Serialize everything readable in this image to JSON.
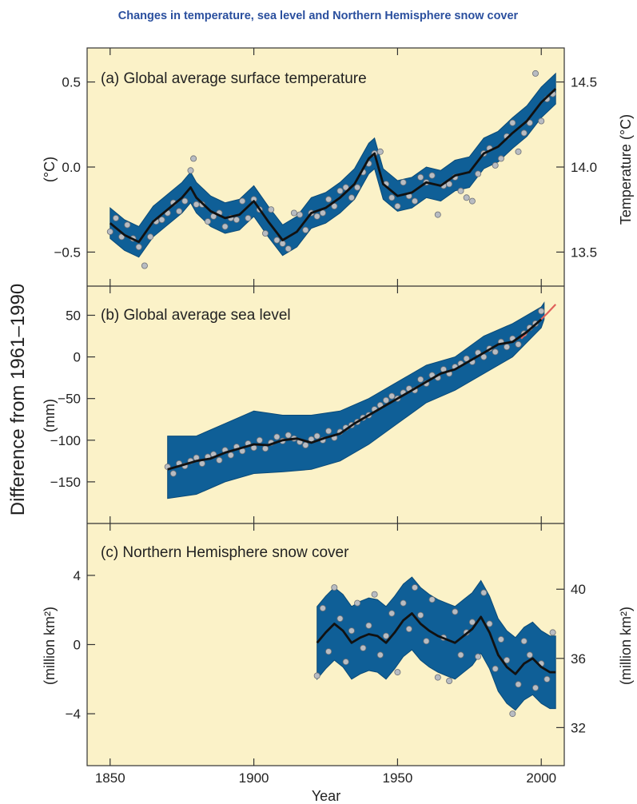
{
  "figure_title": "Changes in temperature, sea level and Northern Hemisphere snow cover",
  "shared_ylabel": "Difference from 1961–1990",
  "shared_xlabel": "Year",
  "colors": {
    "background": "#fbf2c8",
    "band": "#0f5f97",
    "smooth": "#111111",
    "points": "#b8bcc2",
    "satellite": "#e0605a",
    "title": "#2a4f9e"
  },
  "chart_data": [
    {
      "type": "line",
      "title": "(a) Global average surface temperature",
      "ylabel": "(°C)",
      "ylabel_right": "Temperature (°C)",
      "xlim": [
        1842,
        2008
      ],
      "ylim": [
        -0.7,
        0.7
      ],
      "x_ticks": [
        "1850",
        "1900",
        "1950",
        "2000"
      ],
      "y_ticks": [
        {
          "value": 0.5,
          "label": "0.5"
        },
        {
          "value": 0.0,
          "label": "0.0"
        },
        {
          "value": -0.5,
          "label": "−0.5"
        }
      ],
      "y_ticks_right": [
        {
          "value": 0.5,
          "label": "14.5"
        },
        {
          "value": 0.0,
          "label": "14.0"
        },
        {
          "value": -0.5,
          "label": "13.5"
        }
      ],
      "band_halfwidth": 0.09,
      "smoothed": {
        "x": [
          1850,
          1855,
          1860,
          1865,
          1870,
          1875,
          1878,
          1880,
          1885,
          1890,
          1895,
          1900,
          1905,
          1910,
          1915,
          1920,
          1925,
          1930,
          1935,
          1940,
          1942,
          1945,
          1950,
          1955,
          1960,
          1965,
          1970,
          1975,
          1980,
          1985,
          1990,
          1995,
          2000,
          2005
        ],
        "y": [
          -0.33,
          -0.4,
          -0.44,
          -0.32,
          -0.25,
          -0.18,
          -0.12,
          -0.18,
          -0.26,
          -0.3,
          -0.28,
          -0.2,
          -0.32,
          -0.43,
          -0.38,
          -0.27,
          -0.24,
          -0.18,
          -0.1,
          0.05,
          0.08,
          -0.1,
          -0.17,
          -0.15,
          -0.09,
          -0.11,
          -0.05,
          -0.03,
          0.08,
          0.12,
          0.2,
          0.27,
          0.38,
          0.46
        ]
      },
      "annual": {
        "x": [
          1850,
          1852,
          1854,
          1856,
          1858,
          1860,
          1862,
          1864,
          1866,
          1868,
          1870,
          1872,
          1874,
          1876,
          1878,
          1879,
          1880,
          1882,
          1884,
          1886,
          1888,
          1890,
          1892,
          1894,
          1896,
          1898,
          1900,
          1902,
          1904,
          1906,
          1908,
          1910,
          1912,
          1914,
          1916,
          1918,
          1920,
          1922,
          1924,
          1926,
          1928,
          1930,
          1932,
          1934,
          1936,
          1938,
          1940,
          1942,
          1944,
          1946,
          1948,
          1950,
          1952,
          1954,
          1956,
          1958,
          1960,
          1962,
          1964,
          1966,
          1968,
          1970,
          1972,
          1974,
          1976,
          1978,
          1980,
          1982,
          1984,
          1986,
          1988,
          1990,
          1992,
          1994,
          1996,
          1998,
          2000,
          2002,
          2004
        ],
        "y": [
          -0.38,
          -0.3,
          -0.41,
          -0.34,
          -0.42,
          -0.47,
          -0.58,
          -0.41,
          -0.32,
          -0.31,
          -0.27,
          -0.21,
          -0.26,
          -0.2,
          -0.02,
          0.05,
          -0.22,
          -0.22,
          -0.32,
          -0.29,
          -0.27,
          -0.35,
          -0.3,
          -0.31,
          -0.2,
          -0.3,
          -0.19,
          -0.25,
          -0.39,
          -0.25,
          -0.43,
          -0.45,
          -0.48,
          -0.27,
          -0.28,
          -0.37,
          -0.27,
          -0.29,
          -0.27,
          -0.19,
          -0.23,
          -0.14,
          -0.12,
          -0.18,
          -0.12,
          -0.03,
          0.02,
          0.08,
          0.09,
          -0.1,
          -0.18,
          -0.23,
          -0.09,
          -0.17,
          -0.2,
          -0.06,
          -0.09,
          -0.05,
          -0.28,
          -0.11,
          -0.1,
          -0.06,
          -0.14,
          -0.18,
          -0.2,
          -0.04,
          0.08,
          0.11,
          0.01,
          0.05,
          0.18,
          0.26,
          0.09,
          0.2,
          0.26,
          0.55,
          0.27,
          0.4,
          0.43
        ]
      }
    },
    {
      "type": "line",
      "title": "(b) Global average sea level",
      "ylabel": "(mm)",
      "xlim": [
        1842,
        2008
      ],
      "ylim": [
        -200,
        85
      ],
      "x_ticks": [
        "1850",
        "1900",
        "1950",
        "2000"
      ],
      "y_ticks": [
        {
          "value": 50,
          "label": "50"
        },
        {
          "value": 0,
          "label": "0"
        },
        {
          "value": -50,
          "label": "−50"
        },
        {
          "value": -100,
          "label": "−100"
        },
        {
          "value": -150,
          "label": "−150"
        }
      ],
      "band": {
        "x": [
          1870,
          1880,
          1890,
          1900,
          1910,
          1920,
          1930,
          1940,
          1950,
          1960,
          1970,
          1980,
          1990,
          2000,
          2001
        ],
        "lower": [
          -170,
          -165,
          -150,
          -140,
          -138,
          -135,
          -125,
          -105,
          -80,
          -55,
          -40,
          -20,
          0,
          35,
          45
        ],
        "upper": [
          -95,
          -95,
          -80,
          -65,
          -70,
          -70,
          -65,
          -50,
          -30,
          -10,
          0,
          25,
          40,
          60,
          65
        ]
      },
      "smoothed": {
        "x": [
          1870,
          1875,
          1880,
          1885,
          1890,
          1895,
          1900,
          1905,
          1910,
          1915,
          1920,
          1925,
          1930,
          1935,
          1940,
          1945,
          1950,
          1955,
          1960,
          1965,
          1970,
          1975,
          1980,
          1985,
          1990,
          1995,
          2000
        ],
        "y": [
          -135,
          -130,
          -125,
          -122,
          -115,
          -110,
          -105,
          -106,
          -100,
          -98,
          -103,
          -97,
          -92,
          -80,
          -70,
          -60,
          -50,
          -40,
          -30,
          -20,
          -15,
          -5,
          5,
          15,
          18,
          30,
          45
        ]
      },
      "annual": {
        "x": [
          1870,
          1872,
          1874,
          1876,
          1878,
          1880,
          1882,
          1884,
          1886,
          1888,
          1890,
          1892,
          1894,
          1896,
          1898,
          1900,
          1902,
          1904,
          1906,
          1908,
          1910,
          1912,
          1914,
          1916,
          1918,
          1920,
          1922,
          1924,
          1926,
          1928,
          1930,
          1932,
          1934,
          1936,
          1938,
          1940,
          1942,
          1944,
          1946,
          1948,
          1950,
          1952,
          1954,
          1956,
          1958,
          1960,
          1962,
          1964,
          1966,
          1968,
          1970,
          1972,
          1974,
          1976,
          1978,
          1980,
          1982,
          1984,
          1986,
          1988,
          1990,
          1992,
          1994,
          1996,
          1998,
          2000
        ],
        "y": [
          -132,
          -140,
          -128,
          -131,
          -125,
          -121,
          -128,
          -120,
          -117,
          -124,
          -112,
          -118,
          -108,
          -113,
          -104,
          -109,
          -100,
          -110,
          -103,
          -96,
          -101,
          -94,
          -98,
          -102,
          -106,
          -99,
          -95,
          -100,
          -89,
          -97,
          -90,
          -85,
          -82,
          -78,
          -73,
          -70,
          -63,
          -58,
          -52,
          -47,
          -50,
          -43,
          -38,
          -40,
          -27,
          -32,
          -22,
          -25,
          -15,
          -20,
          -12,
          -8,
          -2,
          -6,
          5,
          0,
          10,
          6,
          18,
          12,
          22,
          15,
          28,
          35,
          40,
          55
        ]
      },
      "satellite": {
        "x": [
          1993,
          1996,
          1999,
          2002,
          2005
        ],
        "y": [
          22,
          33,
          42,
          52,
          63
        ]
      }
    },
    {
      "type": "line",
      "title": "(c) Northern Hemisphere snow cover",
      "ylabel": "(million km²)",
      "ylabel_right": "(million km²)",
      "xlim": [
        1842,
        2008
      ],
      "ylim": [
        -7,
        7
      ],
      "x_ticks": [
        "1850",
        "1900",
        "1950",
        "2000"
      ],
      "y_ticks": [
        {
          "value": 4,
          "label": "4"
        },
        {
          "value": 0,
          "label": "0"
        },
        {
          "value": -4,
          "label": "−4"
        }
      ],
      "y_ticks_right": [
        {
          "value": 3.2,
          "label": "40"
        },
        {
          "value": -0.8,
          "label": "36"
        },
        {
          "value": -4.8,
          "label": "32"
        }
      ],
      "band_halfwidth": 2.1,
      "smoothed": {
        "x": [
          1922,
          1925,
          1928,
          1931,
          1934,
          1937,
          1940,
          1943,
          1946,
          1949,
          1952,
          1955,
          1958,
          1961,
          1964,
          1967,
          1970,
          1973,
          1976,
          1979,
          1982,
          1985,
          1988,
          1991,
          1994,
          1997,
          2000,
          2003,
          2005
        ],
        "y": [
          0.1,
          0.7,
          1.2,
          0.8,
          0.1,
          0.4,
          0.6,
          0.5,
          0.1,
          0.7,
          1.4,
          1.8,
          1.2,
          0.8,
          0.5,
          0.3,
          0.1,
          0.5,
          0.9,
          1.6,
          0.7,
          -0.6,
          -1.3,
          -1.7,
          -1.1,
          -0.8,
          -1.3,
          -1.6,
          -1.6
        ]
      },
      "annual": {
        "x": [
          1922,
          1924,
          1926,
          1928,
          1930,
          1932,
          1934,
          1936,
          1938,
          1940,
          1942,
          1944,
          1946,
          1948,
          1950,
          1952,
          1954,
          1956,
          1958,
          1960,
          1962,
          1964,
          1966,
          1968,
          1970,
          1972,
          1974,
          1976,
          1978,
          1980,
          1982,
          1984,
          1986,
          1988,
          1990,
          1992,
          1994,
          1996,
          1998,
          2000,
          2002,
          2004
        ],
        "y": [
          -1.8,
          2.1,
          -0.4,
          3.3,
          1.5,
          -1.0,
          0.8,
          2.4,
          -0.2,
          1.1,
          2.9,
          -0.6,
          0.5,
          1.8,
          -1.6,
          2.4,
          0.9,
          3.3,
          1.7,
          0.2,
          2.6,
          -1.9,
          0.4,
          -2.1,
          1.9,
          -0.6,
          0.7,
          1.3,
          -0.7,
          3.0,
          1.2,
          -1.4,
          0.3,
          -0.9,
          -4.0,
          -2.3,
          0.2,
          -0.6,
          -2.5,
          -1.1,
          -2.0,
          0.7
        ]
      }
    }
  ]
}
